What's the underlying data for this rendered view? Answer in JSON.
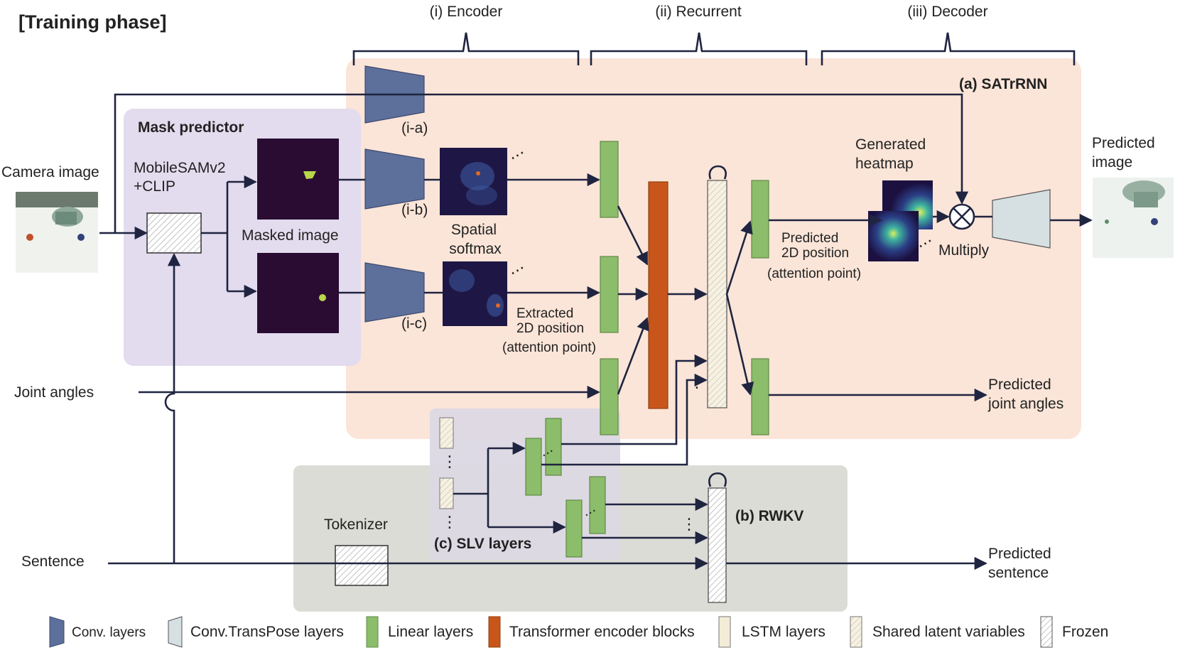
{
  "title": "[Training phase]",
  "groups": {
    "encoder": "(i) Encoder",
    "recurrent": "(ii) Recurrent",
    "decoder": "(iii) Decoder",
    "satrrnn": "(a) SATrRNN",
    "mask_predictor": "Mask predictor",
    "rwkv": "(b) RWKV",
    "slv": "(c) SLV layers"
  },
  "inputs": {
    "camera_image": "Camera image",
    "joint_angles": "Joint angles",
    "sentence": "Sentence"
  },
  "outputs": {
    "predicted_image_1": "Predicted",
    "predicted_image_2": "image",
    "predicted_joint_1": "Predicted",
    "predicted_joint_2": "joint angles",
    "predicted_sentence_1": "Predicted",
    "predicted_sentence_2": "sentence"
  },
  "labels": {
    "mobilesam_1": "MobileSAMv2",
    "mobilesam_2": "+CLIP",
    "masked_image": "Masked image",
    "ia": "(i-a)",
    "ib": "(i-b)",
    "ic": "(i-c)",
    "spatial_1": "Spatial",
    "spatial_2": "softmax",
    "extracted_1": "Extracted",
    "extracted_2": "2D position",
    "extracted_3": "(attention point)",
    "generated_1": "Generated",
    "generated_2": "heatmap",
    "pred2d_1": "Predicted",
    "pred2d_2": "2D position",
    "pred2d_3": "(attention point)",
    "multiply": "Multiply",
    "tokenizer": "Tokenizer"
  },
  "legend": [
    {
      "label": "Conv. layers",
      "color": "#5d6f9b"
    },
    {
      "label": "Conv.TransPose layers",
      "color": "#d6e0e3"
    },
    {
      "label": "Linear layers",
      "color": "#8cbd6a"
    },
    {
      "label": "Transformer encoder blocks",
      "color": "#c8561b"
    },
    {
      "label": "LSTM layers",
      "color": "#f3ecd7"
    },
    {
      "label": "Shared latent variables",
      "color": "#f3ecd7"
    },
    {
      "label": "Frozen",
      "color": "#ffffff"
    }
  ],
  "colors": {
    "satrrnn_bg": "#fbe5d8",
    "mask_bg": "#e3dbee",
    "rwkv_bg": "#dcdcd6",
    "conv": "#5d6f9b",
    "linear": "#8cbd6a",
    "transformer": "#c8561b",
    "lstm": "#f3ecd7",
    "line": "#1f2440"
  }
}
